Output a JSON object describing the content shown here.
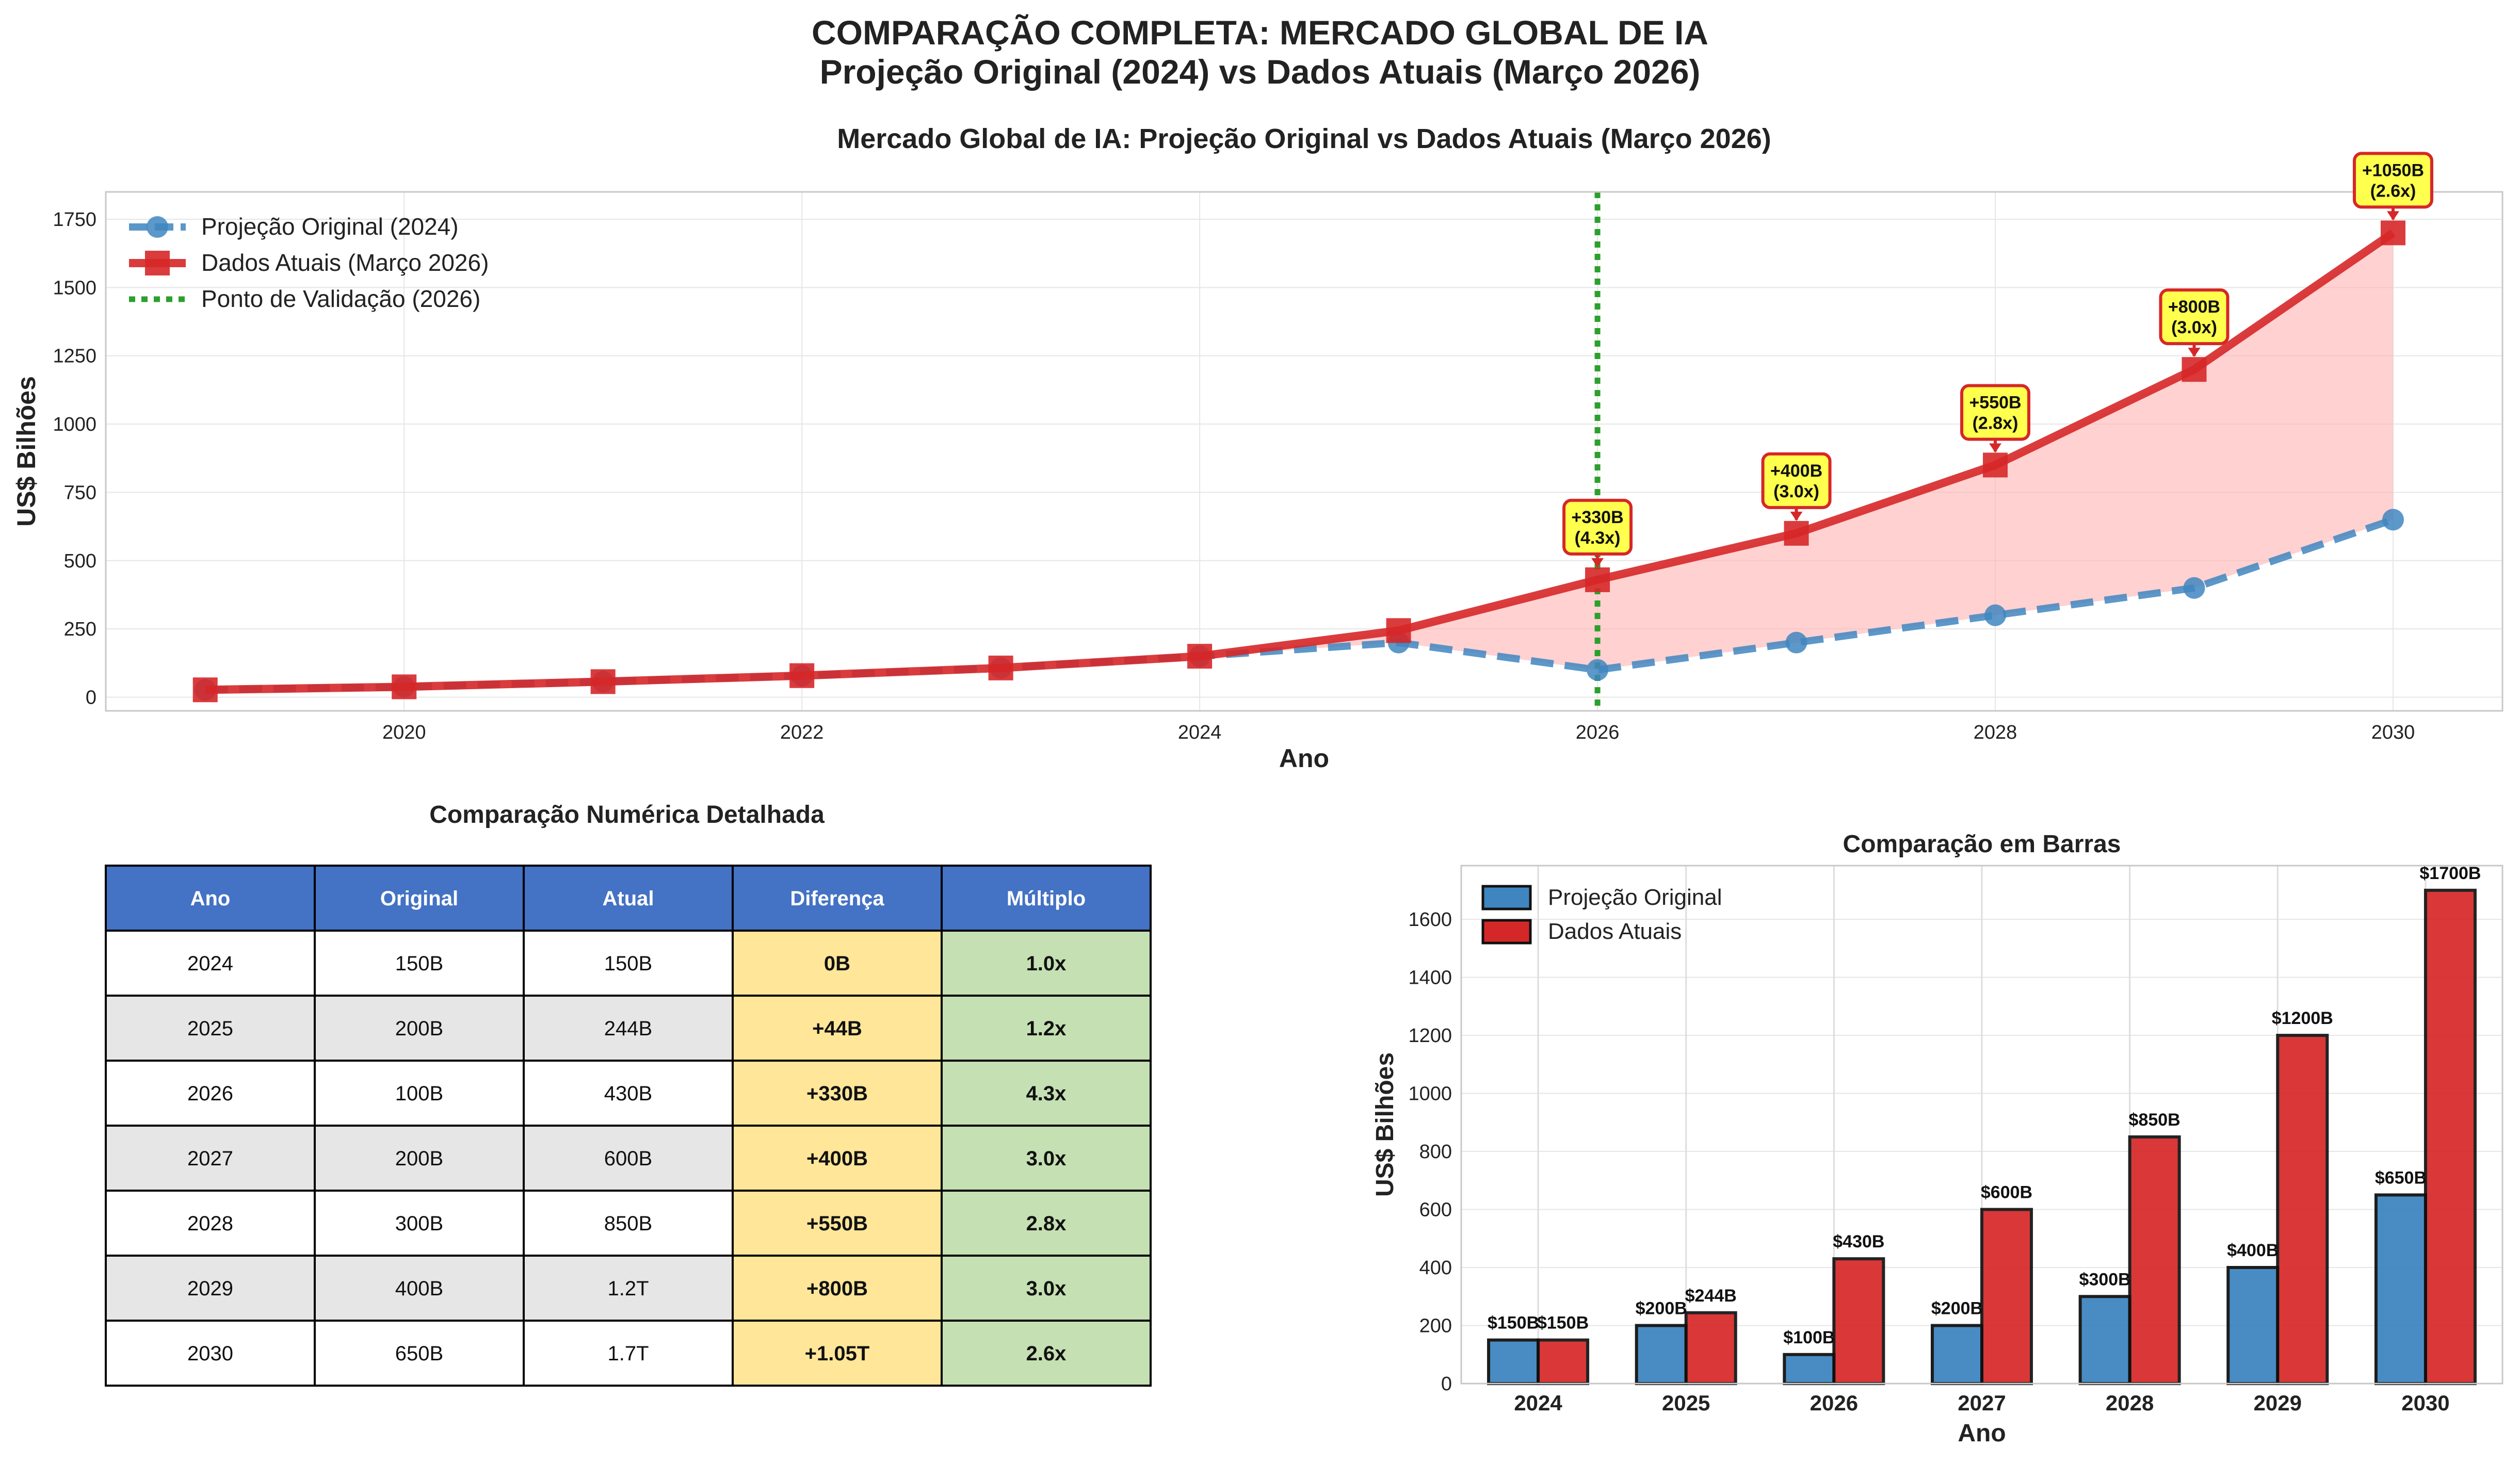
{
  "figure": {
    "title_line1": "COMPARAÇÃO COMPLETA: MERCADO GLOBAL DE IA",
    "title_line2": "Projeção Original (2024) vs Dados Atuais (Março 2026)"
  },
  "colors": {
    "original": "#3f86c0",
    "actual": "#d62728",
    "validation": "#2ca02c",
    "fill": "#ffb3b3",
    "header_bg": "#4472c4",
    "diff_bg": "#ffe699",
    "mult_bg": "#c5e0b3",
    "stripe_bg": "#e6e6e6",
    "annot_bg": "#ffff4d"
  },
  "chart_data": [
    {
      "type": "line",
      "title": "Mercado Global de IA: Projeção Original vs Dados Atuais (Março 2026)",
      "xlabel": "Ano",
      "ylabel": "US$ Bilhões",
      "xlim": [
        2018.5,
        2030.55
      ],
      "ylim": [
        -50,
        1850
      ],
      "xticks": [
        2020,
        2022,
        2024,
        2026,
        2028,
        2030
      ],
      "yticks": [
        0,
        250,
        500,
        750,
        1000,
        1250,
        1500,
        1750
      ],
      "grid": true,
      "legend_position": "top-left",
      "series": [
        {
          "name": "Projeção Original (2024)",
          "style": "dashed-circle",
          "x": [
            2019,
            2020,
            2021,
            2022,
            2023,
            2024,
            2025,
            2026,
            2027,
            2028,
            2029,
            2030
          ],
          "y": [
            27,
            38,
            57,
            79,
            107,
            150,
            200,
            100,
            200,
            300,
            400,
            650
          ]
        },
        {
          "name": "Dados Atuais (Março 2026)",
          "style": "solid-square",
          "x": [
            2019,
            2020,
            2021,
            2022,
            2023,
            2024,
            2025,
            2026,
            2027,
            2028,
            2029,
            2030
          ],
          "y": [
            27,
            38,
            57,
            79,
            107,
            150,
            244,
            430,
            600,
            850,
            1200,
            1700
          ]
        }
      ],
      "reference_line": {
        "name": "Ponto de Validação (2026)",
        "x": 2026
      },
      "annotations": [
        {
          "x": 2026,
          "y": 430,
          "line1": "+330B",
          "line2": "(4.3x)"
        },
        {
          "x": 2027,
          "y": 600,
          "line1": "+400B",
          "line2": "(3.0x)"
        },
        {
          "x": 2028,
          "y": 850,
          "line1": "+550B",
          "line2": "(2.8x)"
        },
        {
          "x": 2029,
          "y": 1200,
          "line1": "+800B",
          "line2": "(3.0x)"
        },
        {
          "x": 2030,
          "y": 1700,
          "line1": "+1050B",
          "line2": "(2.6x)"
        }
      ]
    },
    {
      "type": "table",
      "title": "Comparação Numérica Detalhada",
      "columns": [
        "Ano",
        "Original",
        "Atual",
        "Diferença",
        "Múltiplo"
      ],
      "rows": [
        [
          "2024",
          "150B",
          "150B",
          "0B",
          "1.0x"
        ],
        [
          "2025",
          "200B",
          "244B",
          "+44B",
          "1.2x"
        ],
        [
          "2026",
          "100B",
          "430B",
          "+330B",
          "4.3x"
        ],
        [
          "2027",
          "200B",
          "600B",
          "+400B",
          "3.0x"
        ],
        [
          "2028",
          "300B",
          "850B",
          "+550B",
          "2.8x"
        ],
        [
          "2029",
          "400B",
          "1.2T",
          "+800B",
          "3.0x"
        ],
        [
          "2030",
          "650B",
          "1.7T",
          "+1.05T",
          "2.6x"
        ]
      ]
    },
    {
      "type": "bar",
      "title": "Comparação em Barras",
      "xlabel": "Ano",
      "ylabel": "US$ Bilhões",
      "categories": [
        "2024",
        "2025",
        "2026",
        "2027",
        "2028",
        "2029",
        "2030"
      ],
      "ylim": [
        0,
        1785
      ],
      "yticks": [
        0,
        200,
        400,
        600,
        800,
        1000,
        1200,
        1400,
        1600
      ],
      "grid": true,
      "legend_position": "top-left",
      "series": [
        {
          "name": "Projeção Original",
          "values": [
            150,
            200,
            100,
            200,
            300,
            400,
            650
          ],
          "labels": [
            "$150B",
            "$200B",
            "$100B",
            "$200B",
            "$300B",
            "$400B",
            "$650B"
          ]
        },
        {
          "name": "Dados Atuais",
          "values": [
            150,
            244,
            430,
            600,
            850,
            1200,
            1700
          ],
          "labels": [
            "$150B",
            "$244B",
            "$430B",
            "$600B",
            "$850B",
            "$1200B",
            "$1700B"
          ]
        }
      ]
    }
  ]
}
